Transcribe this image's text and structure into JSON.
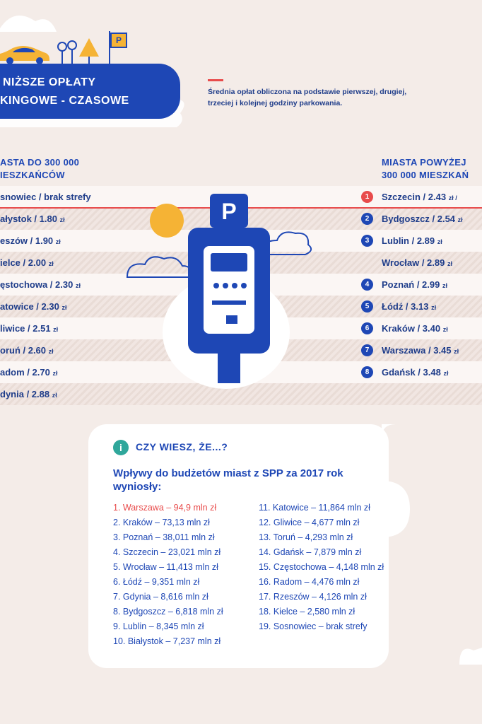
{
  "header": {
    "title_line1": "NIŻSZE OPŁATY",
    "title_line2": "KINGOWE - CZASOWE",
    "parking_sign": "P"
  },
  "note": "Średnia opłat obliczona na podstawie pierwszej, drugiej, trzeciej i kolejnej godziny parkowania.",
  "left_column": {
    "heading_line1": "ASTA DO 300 000",
    "heading_line2": "IESZKAŃCÓW",
    "rows": [
      {
        "city": "snowiec / brak strefy",
        "unit": ""
      },
      {
        "city": "ałystok / 1.80",
        "unit": "zł"
      },
      {
        "city": "eszów / 1.90",
        "unit": "zł"
      },
      {
        "city": "ielce / 2.00",
        "unit": "zł"
      },
      {
        "city": "ęstochowa / 2.30",
        "unit": "zł"
      },
      {
        "city": "atowice / 2.30",
        "unit": "zł"
      },
      {
        "city": "liwice / 2.51",
        "unit": "zł"
      },
      {
        "city": "oruń / 2.60",
        "unit": "zł"
      },
      {
        "city": "adom / 2.70",
        "unit": "zł"
      },
      {
        "city": "dynia / 2.88",
        "unit": "zł"
      }
    ]
  },
  "right_column": {
    "heading_line1": "MIASTA POWYŻEJ",
    "heading_line2": "300 000 MIESZKAŃ",
    "rows": [
      {
        "badge": "1",
        "city": "Szczecin / 2.43",
        "unit": "zł /"
      },
      {
        "badge": "2",
        "city": "Bydgoszcz / 2.54",
        "unit": "zł"
      },
      {
        "badge": "3",
        "city": "Lublin / 2.89",
        "unit": "zł"
      },
      {
        "badge": "",
        "city": "Wrocław / 2.89",
        "unit": "zł"
      },
      {
        "badge": "4",
        "city": "Poznań / 2.99",
        "unit": "zł"
      },
      {
        "badge": "5",
        "city": "Łódź / 3.13",
        "unit": "zł"
      },
      {
        "badge": "6",
        "city": "Kraków / 3.40",
        "unit": "zł"
      },
      {
        "badge": "7",
        "city": "Warszawa / 3.45",
        "unit": "zł"
      },
      {
        "badge": "8",
        "city": "Gdańsk / 3.48",
        "unit": "zł"
      }
    ]
  },
  "meter": {
    "sign": "P"
  },
  "info_card": {
    "icon": "i",
    "title": "CZY WIESZ, ŻE...?",
    "subtitle": "Wpływy do budżetów miast z SPP za 2017 rok wyniosły:",
    "list_left": [
      "1. Warszawa – 94,9 mln zł",
      "2. Kraków – 73,13 mln zł",
      "3. Poznań – 38,011 mln zł",
      "4. Szczecin – 23,021 mln zł",
      "5. Wrocław – 11,413 mln zł",
      "6. Łódź – 9,351 mln zł",
      "7. Gdynia – 8,616 mln zł",
      "8. Bydgoszcz – 6,818 mln zł",
      "9. Lublin – 8,345 mln zł",
      "10. Białystok – 7,237 mln zł"
    ],
    "list_right": [
      "11. Katowice – 11,864 mln zł",
      "12. Gliwice – 4,677 mln zł",
      "13. Toruń – 4,293 mln zł",
      "14. Gdańsk – 7,879 mln zł",
      "15. Częstochowa – 4,148 mln zł",
      "16. Radom – 4,476 mln zł",
      "17. Rzeszów – 4,126 mln zł",
      "18. Kielce – 2,580 mln zł",
      "19. Sosnowiec – brak strefy"
    ]
  },
  "colors": {
    "background": "#f4ece8",
    "primary_blue": "#1e47b5",
    "accent_red": "#e84b4b",
    "sun_yellow": "#f5b335",
    "info_teal": "#2fa79b"
  }
}
